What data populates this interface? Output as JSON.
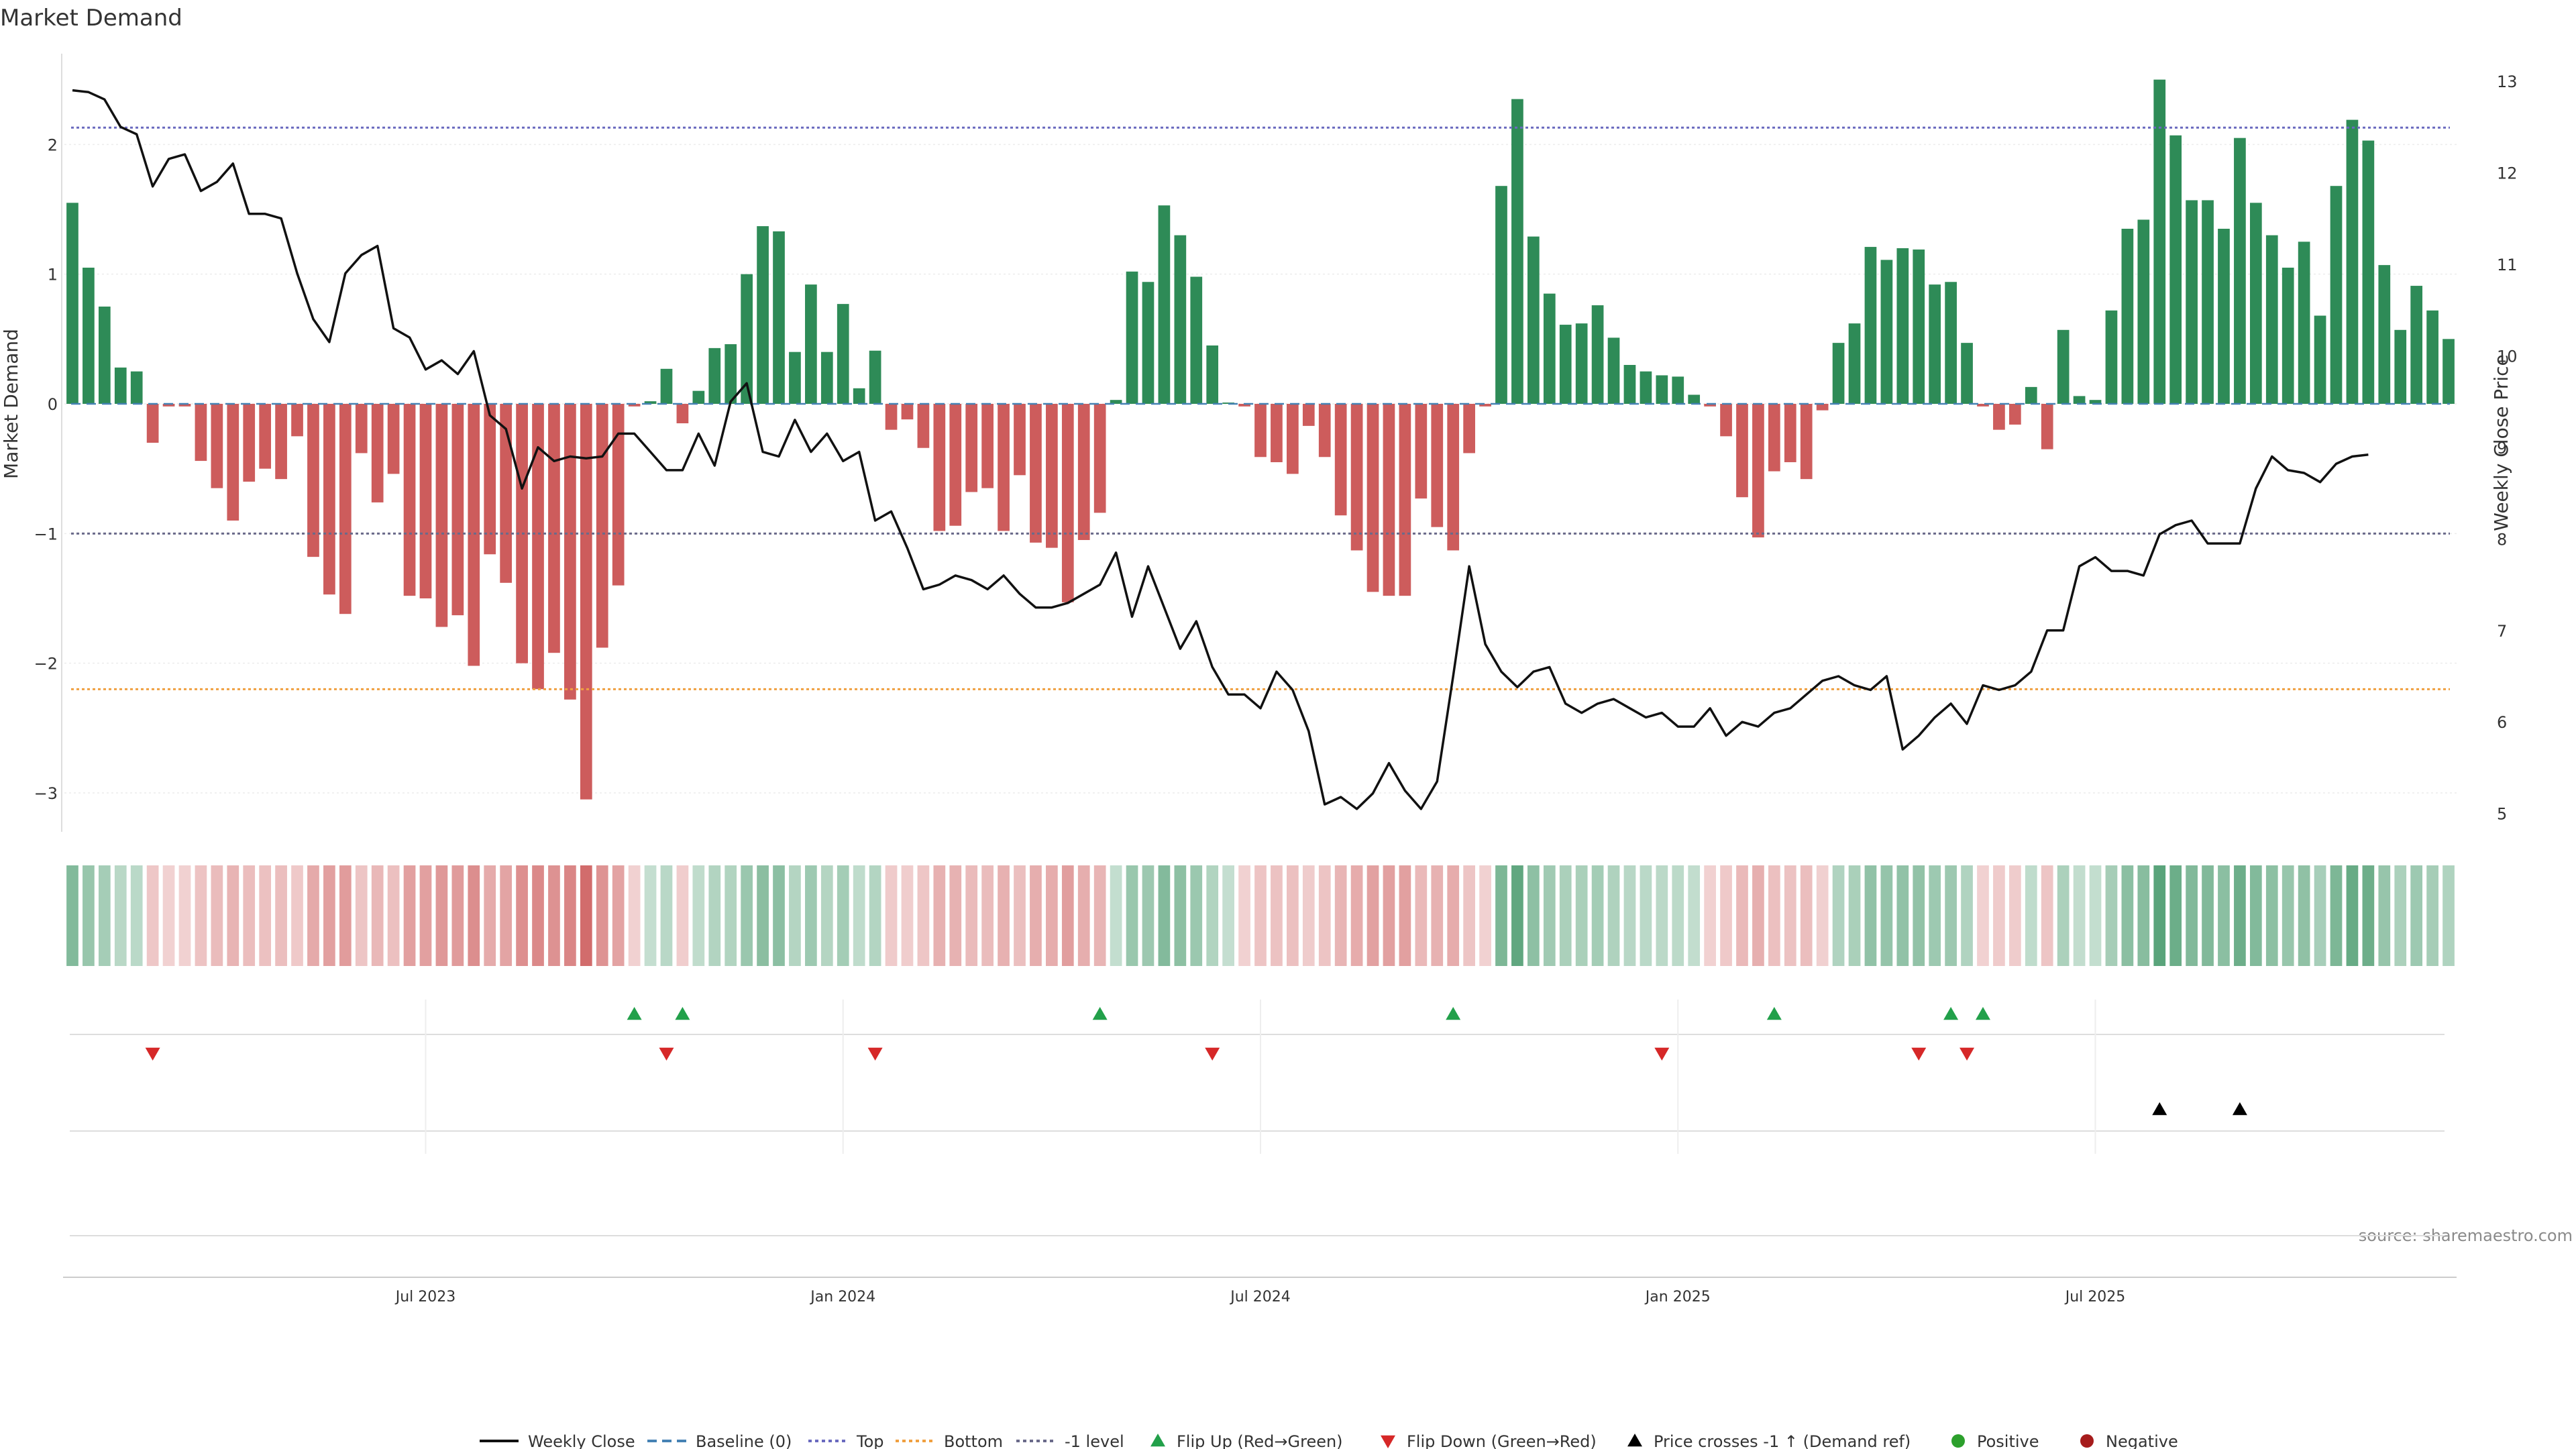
{
  "chart_data": {
    "type": "bar",
    "title": "Market Demand",
    "ylabel_left": "Market Demand",
    "ylabel_right": "Weekly Close Price",
    "ylim_left": [
      -3.3,
      2.7
    ],
    "ylim_right": [
      4.8,
      13.3
    ],
    "left_ticks": [
      2,
      1,
      0,
      -1,
      -2,
      -3
    ],
    "left_tick_labels": [
      "2",
      "1",
      "0",
      "−1",
      "−2",
      "−3"
    ],
    "right_ticks": [
      13,
      12,
      11,
      10,
      9,
      8,
      7,
      6,
      5
    ],
    "right_tick_labels": [
      "13",
      "12",
      "11",
      "10",
      "9",
      "8",
      "7",
      "6",
      "5"
    ],
    "reference_lines": {
      "top": 2.13,
      "bottom": -2.2,
      "minus_one": -1.0,
      "baseline": 0
    },
    "x_tick_labels": [
      {
        "index": 22,
        "label": "Jul 2023"
      },
      {
        "index": 48,
        "label": "Jan 2024"
      },
      {
        "index": 74,
        "label": "Jul 2024"
      },
      {
        "index": 100,
        "label": "Jan 2025"
      },
      {
        "index": 126,
        "label": "Jul 2025"
      }
    ],
    "demand": [
      1.55,
      1.05,
      0.75,
      0.28,
      0.25,
      -0.3,
      -0.02,
      -0.02,
      -0.44,
      -0.65,
      -0.9,
      -0.6,
      -0.5,
      -0.58,
      -0.25,
      -1.18,
      -1.47,
      -1.62,
      -0.38,
      -0.76,
      -0.54,
      -1.48,
      -1.5,
      -1.72,
      -1.63,
      -2.02,
      -1.16,
      -1.38,
      -2.0,
      -2.2,
      -1.92,
      -2.28,
      -3.05,
      -1.88,
      -1.4,
      -0.02,
      0.02,
      0.27,
      -0.15,
      0.1,
      0.43,
      0.46,
      1.0,
      1.37,
      1.33,
      0.4,
      0.92,
      0.4,
      0.77,
      0.12,
      0.41,
      -0.2,
      -0.12,
      -0.34,
      -0.98,
      -0.94,
      -0.68,
      -0.65,
      -0.98,
      -0.55,
      -1.07,
      -1.11,
      -1.53,
      -1.05,
      -0.84,
      0.03,
      1.02,
      0.94,
      1.53,
      1.3,
      0.98,
      0.45,
      0.01,
      -0.02,
      -0.41,
      -0.45,
      -0.54,
      -0.17,
      -0.41,
      -0.86,
      -1.13,
      -1.45,
      -1.48,
      -1.48,
      -0.73,
      -0.95,
      -1.13,
      -0.38,
      -0.02,
      1.68,
      2.35,
      1.29,
      0.85,
      0.61,
      0.62,
      0.76,
      0.51,
      0.3,
      0.25,
      0.22,
      0.21,
      0.07,
      -0.02,
      -0.25,
      -0.72,
      -1.03,
      -0.52,
      -0.45,
      -0.58,
      -0.05,
      0.47,
      0.62,
      1.21,
      1.11,
      1.2,
      1.19,
      0.92,
      0.94,
      0.47,
      -0.02,
      -0.2,
      -0.16,
      0.13,
      -0.35,
      0.57,
      0.06,
      0.03,
      0.72,
      1.35,
      1.42,
      2.5,
      2.07,
      1.57,
      1.57,
      1.35,
      2.05,
      1.55,
      1.3,
      1.05,
      1.25,
      0.68,
      1.68,
      2.19,
      2.03,
      1.07,
      0.57,
      0.91,
      0.72,
      0.5
    ],
    "weekly_close": [
      12.9,
      12.88,
      12.8,
      12.5,
      12.42,
      11.85,
      12.15,
      12.2,
      11.8,
      11.9,
      12.1,
      11.55,
      11.55,
      11.5,
      10.9,
      10.4,
      10.15,
      10.9,
      11.1,
      11.2,
      10.3,
      10.2,
      9.85,
      9.95,
      9.8,
      10.05,
      9.35,
      9.2,
      8.55,
      9.0,
      8.85,
      8.9,
      8.88,
      8.9,
      9.15,
      9.15,
      8.95,
      8.75,
      8.75,
      9.15,
      8.8,
      9.5,
      9.7,
      8.95,
      8.9,
      9.3,
      8.95,
      9.15,
      8.85,
      8.95,
      8.2,
      8.3,
      7.9,
      7.45,
      7.5,
      7.6,
      7.55,
      7.45,
      7.6,
      7.4,
      7.25,
      7.25,
      7.3,
      7.4,
      7.5,
      7.85,
      7.15,
      7.7,
      7.25,
      6.8,
      7.1,
      6.6,
      6.3,
      6.3,
      6.15,
      6.55,
      6.35,
      5.9,
      5.1,
      5.18,
      5.05,
      5.22,
      5.55,
      5.25,
      5.05,
      5.35,
      6.5,
      7.7,
      6.85,
      6.55,
      6.38,
      6.55,
      6.6,
      6.2,
      6.1,
      6.2,
      6.25,
      6.15,
      6.05,
      6.1,
      5.95,
      5.95,
      6.15,
      5.85,
      6.0,
      5.95,
      6.1,
      6.15,
      6.3,
      6.45,
      6.5,
      6.4,
      6.35,
      6.5,
      5.7,
      5.85,
      6.05,
      6.2,
      5.98,
      6.4,
      6.35,
      6.4,
      6.55,
      7.0,
      7.0,
      7.7,
      7.8,
      7.65,
      7.65,
      7.6,
      8.05,
      8.15,
      8.2,
      7.95,
      7.95,
      7.95,
      8.55,
      8.9,
      8.75,
      8.72,
      8.62,
      8.82,
      8.9,
      8.92
    ],
    "flip_up_indices": [
      35,
      38,
      64,
      86,
      106,
      117,
      119
    ],
    "flip_down_indices": [
      5,
      37,
      50,
      71,
      99,
      115,
      118
    ],
    "price_cross_indices": [
      130,
      135
    ],
    "legend": [
      "Weekly Close",
      "Baseline (0)",
      "Top",
      "Bottom",
      "-1 level",
      "Flip Up (Red→Green)",
      "Flip Down (Green→Red)",
      "Price crosses -1 ↑ (Demand ref)",
      "Positive",
      "Negative"
    ],
    "source": "source: sharemaestro.com"
  },
  "colors": {
    "positive": "#2e8b57",
    "negative": "#cd5c5c",
    "close": "#111111",
    "top": "#6a6abf",
    "bottom": "#f0a040",
    "minus_one": "#6a6a8a",
    "baseline": "#4682b4",
    "flip_up": "#22a04a",
    "flip_down": "#d62828",
    "cross": "#000000",
    "pos_dot": "#2ca02c",
    "neg_dot": "#a61c1c"
  }
}
